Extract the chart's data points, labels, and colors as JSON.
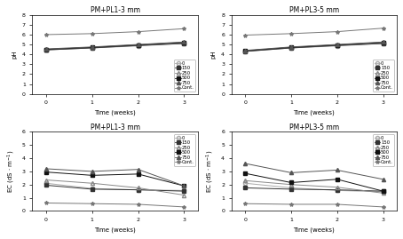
{
  "time": [
    0,
    1,
    2,
    3
  ],
  "subplot_titles": [
    "PM+PL1-3 mm",
    "PM+PL3-5 mm",
    "PM+PL1-3 mm",
    "PM+PL3-5 mm"
  ],
  "legend_labels": [
    "0",
    "150",
    "250",
    "500",
    "750",
    "Cont."
  ],
  "ph_pl13": {
    "0": [
      4.45,
      4.65,
      4.85,
      5.1
    ],
    "150": [
      4.45,
      4.65,
      4.9,
      5.1
    ],
    "250": [
      4.5,
      4.7,
      4.95,
      5.15
    ],
    "500": [
      4.5,
      4.7,
      4.95,
      5.2
    ],
    "750": [
      4.55,
      4.75,
      5.0,
      5.25
    ],
    "Cont.": [
      6.0,
      6.1,
      6.3,
      6.6
    ]
  },
  "ph_pl35": {
    "0": [
      4.3,
      4.65,
      4.85,
      5.1
    ],
    "150": [
      4.3,
      4.65,
      4.9,
      5.1
    ],
    "250": [
      4.35,
      4.7,
      4.95,
      5.15
    ],
    "500": [
      4.35,
      4.7,
      4.95,
      5.2
    ],
    "750": [
      4.4,
      4.75,
      5.0,
      5.25
    ],
    "Cont.": [
      5.95,
      6.1,
      6.3,
      6.65
    ]
  },
  "ec_pl13": {
    "0": [
      2.1,
      1.7,
      1.6,
      1.55
    ],
    "150": [
      1.95,
      1.65,
      1.6,
      1.5
    ],
    "250": [
      2.35,
      2.1,
      1.75,
      1.2
    ],
    "500": [
      2.95,
      2.7,
      2.8,
      1.9
    ],
    "750": [
      3.2,
      3.0,
      3.15,
      1.9
    ],
    "Cont.": [
      0.6,
      0.55,
      0.5,
      0.3
    ]
  },
  "ec_pl35": {
    "0": [
      2.1,
      1.75,
      1.55,
      1.45
    ],
    "150": [
      1.75,
      1.65,
      1.6,
      1.5
    ],
    "250": [
      2.3,
      2.0,
      1.8,
      1.35
    ],
    "500": [
      2.85,
      2.15,
      2.4,
      1.5
    ],
    "750": [
      3.6,
      2.9,
      3.1,
      2.4
    ],
    "Cont.": [
      0.55,
      0.5,
      0.5,
      0.3
    ]
  },
  "markers": [
    "o",
    "s",
    "^",
    "s",
    "^",
    "*"
  ],
  "colors": [
    "#aaaaaa",
    "#333333",
    "#888888",
    "#111111",
    "#555555",
    "#777777"
  ],
  "fillstyles": [
    "none",
    "full",
    "none",
    "full",
    "full",
    "none"
  ],
  "ph_ylim": [
    0,
    8
  ],
  "ph_yticks": [
    0,
    1,
    2,
    3,
    4,
    5,
    6,
    7,
    8
  ],
  "ec_ylim": [
    0,
    6
  ],
  "ec_yticks": [
    0,
    1,
    2,
    3,
    4,
    5,
    6
  ]
}
